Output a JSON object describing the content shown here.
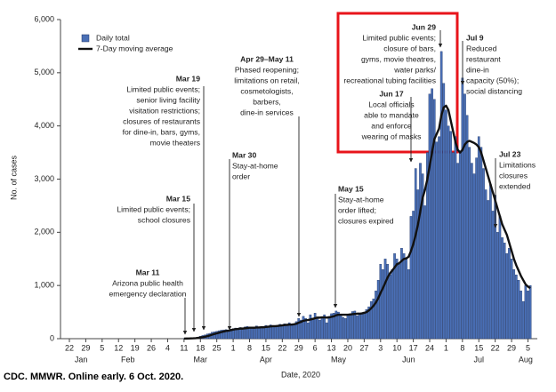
{
  "chart_data": {
    "type": "bar+line",
    "y_label": "No. of cases",
    "x_label": "Date, 2020",
    "source": "CDC. MMWR.  Online early.  6 Oct. 2020.",
    "ylim": [
      0,
      6000
    ],
    "yticks": [
      0,
      {
        "value": 1000,
        "label": "1,000"
      },
      {
        "value": 2000,
        "label": "2,000"
      },
      {
        "value": 3000,
        "label": "3,000"
      },
      {
        "value": 4000,
        "label": "4,000"
      },
      {
        "value": 5000,
        "label": "5,000"
      },
      {
        "value": 6000,
        "label": "6,000"
      }
    ],
    "x": [
      "2020-01-22",
      "2020-01-23",
      "2020-01-24",
      "2020-01-25",
      "2020-01-26",
      "2020-01-27",
      "2020-01-28",
      "2020-01-29",
      "2020-01-30",
      "2020-01-31",
      "2020-02-01",
      "2020-02-02",
      "2020-02-03",
      "2020-02-04",
      "2020-02-05",
      "2020-02-06",
      "2020-02-07",
      "2020-02-08",
      "2020-02-09",
      "2020-02-10",
      "2020-02-11",
      "2020-02-12",
      "2020-02-13",
      "2020-02-14",
      "2020-02-15",
      "2020-02-16",
      "2020-02-17",
      "2020-02-18",
      "2020-02-19",
      "2020-02-20",
      "2020-02-21",
      "2020-02-22",
      "2020-02-23",
      "2020-02-24",
      "2020-02-25",
      "2020-02-26",
      "2020-02-27",
      "2020-02-28",
      "2020-02-29",
      "2020-03-01",
      "2020-03-02",
      "2020-03-03",
      "2020-03-04",
      "2020-03-05",
      "2020-03-06",
      "2020-03-07",
      "2020-03-08",
      "2020-03-09",
      "2020-03-10",
      "2020-03-11",
      "2020-03-12",
      "2020-03-13",
      "2020-03-14",
      "2020-03-15",
      "2020-03-16",
      "2020-03-17",
      "2020-03-18",
      "2020-03-19",
      "2020-03-20",
      "2020-03-21",
      "2020-03-22",
      "2020-03-23",
      "2020-03-24",
      "2020-03-25",
      "2020-03-26",
      "2020-03-27",
      "2020-03-28",
      "2020-03-29",
      "2020-03-30",
      "2020-03-31",
      "2020-04-01",
      "2020-04-02",
      "2020-04-03",
      "2020-04-04",
      "2020-04-05",
      "2020-04-06",
      "2020-04-07",
      "2020-04-08",
      "2020-04-09",
      "2020-04-10",
      "2020-04-11",
      "2020-04-12",
      "2020-04-13",
      "2020-04-14",
      "2020-04-15",
      "2020-04-16",
      "2020-04-17",
      "2020-04-18",
      "2020-04-19",
      "2020-04-20",
      "2020-04-21",
      "2020-04-22",
      "2020-04-23",
      "2020-04-24",
      "2020-04-25",
      "2020-04-26",
      "2020-04-27",
      "2020-04-28",
      "2020-04-29",
      "2020-04-30",
      "2020-05-01",
      "2020-05-02",
      "2020-05-03",
      "2020-05-04",
      "2020-05-05",
      "2020-05-06",
      "2020-05-07",
      "2020-05-08",
      "2020-05-09",
      "2020-05-10",
      "2020-05-11",
      "2020-05-12",
      "2020-05-13",
      "2020-05-14",
      "2020-05-15",
      "2020-05-16",
      "2020-05-17",
      "2020-05-18",
      "2020-05-19",
      "2020-05-20",
      "2020-05-21",
      "2020-05-22",
      "2020-05-23",
      "2020-05-24",
      "2020-05-25",
      "2020-05-26",
      "2020-05-27",
      "2020-05-28",
      "2020-05-29",
      "2020-05-30",
      "2020-05-31",
      "2020-06-01",
      "2020-06-02",
      "2020-06-03",
      "2020-06-04",
      "2020-06-05",
      "2020-06-06",
      "2020-06-07",
      "2020-06-08",
      "2020-06-09",
      "2020-06-10",
      "2020-06-11",
      "2020-06-12",
      "2020-06-13",
      "2020-06-14",
      "2020-06-15",
      "2020-06-16",
      "2020-06-17",
      "2020-06-18",
      "2020-06-19",
      "2020-06-20",
      "2020-06-21",
      "2020-06-22",
      "2020-06-23",
      "2020-06-24",
      "2020-06-25",
      "2020-06-26",
      "2020-06-27",
      "2020-06-28",
      "2020-06-29",
      "2020-06-30",
      "2020-07-01",
      "2020-07-02",
      "2020-07-03",
      "2020-07-04",
      "2020-07-05",
      "2020-07-06",
      "2020-07-07",
      "2020-07-08",
      "2020-07-09",
      "2020-07-10",
      "2020-07-11",
      "2020-07-12",
      "2020-07-13",
      "2020-07-14",
      "2020-07-15",
      "2020-07-16",
      "2020-07-17",
      "2020-07-18",
      "2020-07-19",
      "2020-07-20",
      "2020-07-21",
      "2020-07-22",
      "2020-07-23",
      "2020-07-24",
      "2020-07-25",
      "2020-07-26",
      "2020-07-27",
      "2020-07-28",
      "2020-07-29",
      "2020-07-30",
      "2020-07-31",
      "2020-08-01",
      "2020-08-02",
      "2020-08-03",
      "2020-08-04",
      "2020-08-05",
      "2020-08-06"
    ],
    "xticks": [
      {
        "value": "2020-01-22",
        "label": "22"
      },
      {
        "value": "2020-01-29",
        "label": "29"
      },
      {
        "value": "2020-02-05",
        "label": "5"
      },
      {
        "value": "2020-02-12",
        "label": "12"
      },
      {
        "value": "2020-02-19",
        "label": "19"
      },
      {
        "value": "2020-02-26",
        "label": "26"
      },
      {
        "value": "2020-03-04",
        "label": "4"
      },
      {
        "value": "2020-03-11",
        "label": "11"
      },
      {
        "value": "2020-03-18",
        "label": "18"
      },
      {
        "value": "2020-03-25",
        "label": "25"
      },
      {
        "value": "2020-04-01",
        "label": "1"
      },
      {
        "value": "2020-04-08",
        "label": "8"
      },
      {
        "value": "2020-04-15",
        "label": "15"
      },
      {
        "value": "2020-04-22",
        "label": "22"
      },
      {
        "value": "2020-04-29",
        "label": "29"
      },
      {
        "value": "2020-05-06",
        "label": "6"
      },
      {
        "value": "2020-05-13",
        "label": "13"
      },
      {
        "value": "2020-05-20",
        "label": "20"
      },
      {
        "value": "2020-05-27",
        "label": "27"
      },
      {
        "value": "2020-06-03",
        "label": "3"
      },
      {
        "value": "2020-06-10",
        "label": "10"
      },
      {
        "value": "2020-06-17",
        "label": "17"
      },
      {
        "value": "2020-06-24",
        "label": "24"
      },
      {
        "value": "2020-07-01",
        "label": "1"
      },
      {
        "value": "2020-07-08",
        "label": "8"
      },
      {
        "value": "2020-07-15",
        "label": "15"
      },
      {
        "value": "2020-07-22",
        "label": "22"
      },
      {
        "value": "2020-07-29",
        "label": "29"
      },
      {
        "value": "2020-08-05",
        "label": "5"
      }
    ],
    "month_labels": [
      {
        "value": "2020-01-27",
        "label": "Jan"
      },
      {
        "value": "2020-02-16",
        "label": "Feb"
      },
      {
        "value": "2020-03-18",
        "label": "Mar"
      },
      {
        "value": "2020-04-15",
        "label": "Apr"
      },
      {
        "value": "2020-05-16",
        "label": "May"
      },
      {
        "value": "2020-06-15",
        "label": "Jun"
      },
      {
        "value": "2020-07-15",
        "label": "Jul"
      },
      {
        "value": "2020-08-04",
        "label": "Aug"
      }
    ],
    "series": [
      {
        "name": "Daily total",
        "type": "bar",
        "color": "#4a6fb5",
        "values": [
          0,
          0,
          0,
          0,
          0,
          0,
          0,
          0,
          0,
          0,
          0,
          0,
          0,
          0,
          0,
          0,
          0,
          0,
          0,
          0,
          0,
          0,
          0,
          0,
          0,
          0,
          0,
          0,
          0,
          0,
          0,
          0,
          0,
          0,
          0,
          0,
          0,
          0,
          0,
          0,
          0,
          0,
          0,
          0,
          0,
          0,
          0,
          0,
          0,
          2,
          5,
          8,
          10,
          12,
          20,
          30,
          45,
          60,
          70,
          90,
          100,
          120,
          130,
          140,
          150,
          160,
          165,
          170,
          160,
          180,
          190,
          200,
          180,
          210,
          170,
          220,
          230,
          210,
          200,
          190,
          240,
          200,
          220,
          230,
          250,
          240,
          260,
          230,
          220,
          250,
          270,
          260,
          280,
          240,
          300,
          250,
          260,
          320,
          380,
          350,
          420,
          380,
          300,
          450,
          390,
          480,
          410,
          350,
          380,
          450,
          300,
          420,
          470,
          480,
          520,
          500,
          450,
          400,
          380,
          460,
          470,
          510,
          520,
          430,
          480,
          470,
          500,
          550,
          600,
          700,
          750,
          900,
          1100,
          1400,
          1300,
          1500,
          1400,
          1200,
          1300,
          1600,
          1500,
          1400,
          1700,
          1600,
          1500,
          1300,
          2300,
          2400,
          3200,
          2800,
          3300,
          3100,
          2500,
          3500,
          4600,
          4700,
          4500,
          3700,
          3800,
          5400,
          4800,
          4300,
          4000,
          3900,
          3500,
          3800,
          3300,
          3500,
          4900,
          4600,
          4200,
          3600,
          3300,
          3100,
          3400,
          3800,
          3600,
          3200,
          2800,
          2600,
          2900,
          2400,
          2700,
          2000,
          2300,
          1900,
          1800,
          1600,
          1700,
          1500,
          1300,
          1200,
          1100,
          900,
          700,
          1000,
          900,
          1000
        ]
      },
      {
        "name": "7-Day moving average",
        "type": "line",
        "color": "#111111",
        "values": [
          null,
          null,
          null,
          null,
          null,
          null,
          null,
          null,
          null,
          null,
          null,
          null,
          null,
          null,
          null,
          null,
          null,
          null,
          null,
          null,
          null,
          null,
          null,
          null,
          null,
          null,
          null,
          null,
          null,
          null,
          null,
          null,
          null,
          null,
          null,
          null,
          null,
          null,
          null,
          null,
          null,
          null,
          null,
          null,
          null,
          null,
          null,
          null,
          null,
          1,
          2,
          3,
          5,
          7,
          10,
          15,
          21,
          28,
          37,
          48,
          60,
          75,
          88,
          100,
          112,
          125,
          135,
          145,
          150,
          160,
          170,
          178,
          183,
          190,
          190,
          195,
          200,
          205,
          205,
          205,
          210,
          210,
          215,
          215,
          220,
          225,
          230,
          235,
          235,
          240,
          245,
          250,
          255,
          260,
          265,
          265,
          270,
          280,
          300,
          315,
          335,
          345,
          350,
          360,
          370,
          385,
          395,
          395,
          400,
          400,
          395,
          400,
          410,
          420,
          440,
          450,
          450,
          450,
          450,
          450,
          455,
          460,
          465,
          470,
          470,
          475,
          485,
          500,
          530,
          570,
          620,
          680,
          760,
          860,
          950,
          1050,
          1150,
          1230,
          1280,
          1340,
          1400,
          1420,
          1460,
          1500,
          1510,
          1540,
          1650,
          1780,
          1950,
          2150,
          2400,
          2650,
          2800,
          3000,
          3250,
          3500,
          3750,
          3850,
          3950,
          4200,
          4350,
          4380,
          4300,
          4100,
          3900,
          3700,
          3550,
          3500,
          3550,
          3650,
          3700,
          3720,
          3700,
          3680,
          3650,
          3600,
          3500,
          3350,
          3200,
          3050,
          2900,
          2750,
          2600,
          2450,
          2300,
          2150,
          2050,
          1950,
          1800,
          1650,
          1500,
          1380,
          1280,
          1180,
          1100,
          1020,
          980,
          950
        ]
      }
    ],
    "annotations": [
      {
        "date": "Mar 11",
        "lines": [
          "Arizona public health",
          "emergency declaration"
        ]
      },
      {
        "date": "Mar 15",
        "lines": [
          "Limited public events;",
          "school closures"
        ]
      },
      {
        "date": "Mar 19",
        "lines": [
          "Limited public events;",
          "senior living facility",
          "visitation restrictions;",
          "closures of restaurants",
          "for dine-in, bars, gyms,",
          "movie theaters"
        ]
      },
      {
        "date": "Mar 30",
        "lines": [
          "Stay-at-home",
          "order"
        ]
      },
      {
        "date": "Apr 29–May 11",
        "lines": [
          "Phased reopening;",
          "limitations on retail,",
          "cosmetologists,",
          "barbers,",
          "dine-in services"
        ]
      },
      {
        "date": "May 15",
        "lines": [
          "Stay-at-home",
          "order lifted;",
          "closures expired"
        ]
      },
      {
        "date": "Jun 17",
        "lines": [
          "Local officials",
          "able to mandate",
          "and enforce",
          "wearing of masks"
        ]
      },
      {
        "date": "Jun 29",
        "lines": [
          "Limited public events;",
          "closure of bars,",
          "gyms, movie theatres,",
          "water parks/",
          "recreational tubing facilities"
        ]
      },
      {
        "date": "Jul 9",
        "lines": [
          "Reduced",
          "restaurant",
          "dine-in",
          "capacity (50%);",
          "social distancing"
        ]
      },
      {
        "date": "Jul 23",
        "lines": [
          "Limitations",
          "closures",
          "extended"
        ]
      }
    ],
    "legend": "top-left"
  }
}
